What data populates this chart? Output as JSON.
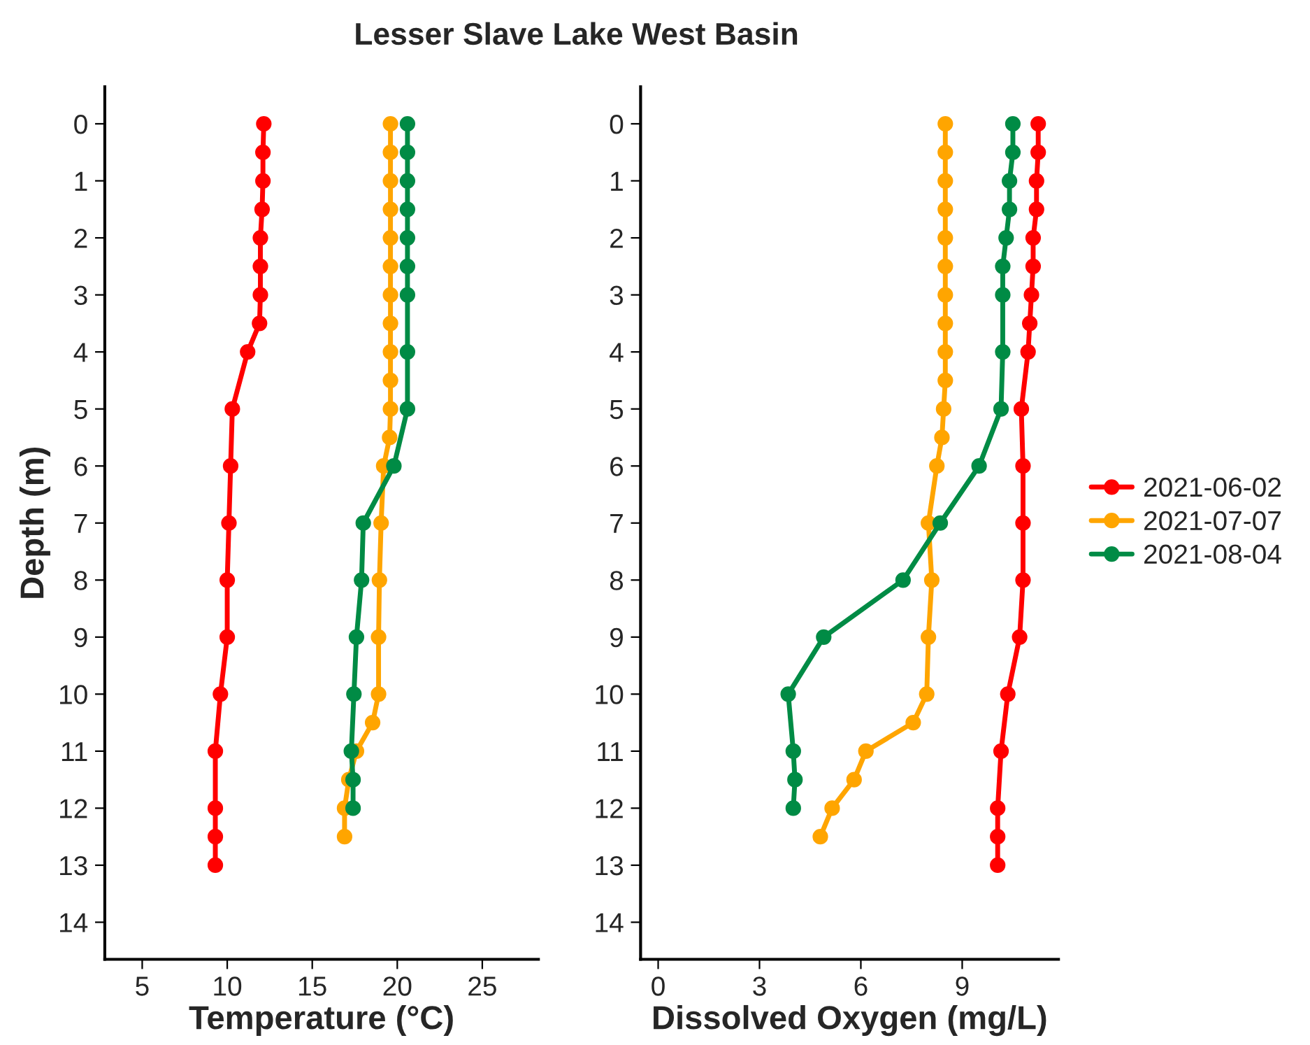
{
  "chart_data": [
    {
      "type": "line",
      "title": "Lesser Slave Lake West Basin",
      "orientation": "horizontal",
      "xlabel": "Temperature (°C)",
      "ylabel": "Depth (m)",
      "xlim": [
        2.8,
        28.3
      ],
      "xticks": [
        5,
        10,
        15,
        20,
        25
      ],
      "ylim": [
        14.65,
        -0.65
      ],
      "yticks": [
        0,
        1,
        2,
        3,
        4,
        5,
        6,
        7,
        8,
        9,
        10,
        11,
        12,
        13,
        14
      ],
      "marker": "circle",
      "line_style": "solid",
      "grid": false,
      "legend": false,
      "series": [
        {
          "color": "#ff0000",
          "x": [
            0,
            0.5,
            1,
            1.5,
            2,
            2.5,
            3,
            3.5,
            4,
            5,
            6,
            7,
            8,
            9,
            10,
            11,
            12,
            12.5,
            13
          ],
          "values": [
            12.15,
            12.1,
            12.1,
            12.05,
            11.95,
            11.95,
            11.95,
            11.9,
            11.2,
            10.3,
            10.2,
            10.1,
            10.0,
            10.0,
            9.6,
            9.3,
            9.3,
            9.3,
            9.3
          ]
        },
        {
          "color": "#ffa500",
          "x": [
            0,
            0.5,
            1,
            1.5,
            2,
            2.5,
            3,
            3.5,
            4,
            4.5,
            5,
            5.5,
            6,
            7,
            8,
            9,
            10,
            10.5,
            11,
            11.5,
            12,
            12.5
          ],
          "values": [
            19.6,
            19.6,
            19.6,
            19.6,
            19.6,
            19.6,
            19.6,
            19.6,
            19.6,
            19.6,
            19.6,
            19.55,
            19.2,
            19.05,
            18.95,
            18.9,
            18.9,
            18.55,
            17.6,
            17.15,
            16.9,
            16.9
          ]
        },
        {
          "color": "#008b45",
          "x": [
            0,
            0.5,
            1,
            1.5,
            2,
            2.5,
            3,
            4,
            5,
            6,
            7,
            8,
            9,
            10,
            11,
            11.5,
            12
          ],
          "values": [
            20.6,
            20.6,
            20.6,
            20.6,
            20.6,
            20.6,
            20.6,
            20.6,
            20.6,
            19.8,
            18.0,
            17.9,
            17.6,
            17.45,
            17.3,
            17.4,
            17.4
          ]
        }
      ]
    },
    {
      "type": "line",
      "orientation": "horizontal",
      "xlabel": "Dissolved Oxygen (mg/L)",
      "xlim": [
        -0.52,
        11.85
      ],
      "xticks": [
        0,
        3,
        6,
        9
      ],
      "ylim": [
        14.65,
        -0.65
      ],
      "yticks": [
        0,
        1,
        2,
        3,
        4,
        5,
        6,
        7,
        8,
        9,
        10,
        11,
        12,
        13,
        14
      ],
      "marker": "circle",
      "line_style": "solid",
      "grid": false,
      "legend": "right",
      "series": [
        {
          "name": "2021-06-02",
          "color": "#ff0000",
          "x": [
            0,
            0.5,
            1,
            1.5,
            2,
            2.5,
            3,
            3.5,
            4,
            5,
            6,
            7,
            8,
            9,
            10,
            11,
            12,
            12.5,
            13
          ],
          "values": [
            11.25,
            11.25,
            11.2,
            11.2,
            11.1,
            11.1,
            11.05,
            11.0,
            10.95,
            10.75,
            10.8,
            10.8,
            10.8,
            10.7,
            10.35,
            10.15,
            10.05,
            10.05,
            10.05
          ]
        },
        {
          "name": "2021-07-07",
          "color": "#ffa500",
          "x": [
            0,
            0.5,
            1,
            1.5,
            2,
            2.5,
            3,
            3.5,
            4,
            4.5,
            5,
            5.5,
            6,
            7,
            8,
            9,
            10,
            10.5,
            11,
            11.5,
            12,
            12.5
          ],
          "values": [
            8.5,
            8.5,
            8.5,
            8.5,
            8.5,
            8.5,
            8.5,
            8.5,
            8.5,
            8.5,
            8.45,
            8.4,
            8.25,
            8.0,
            8.1,
            8.0,
            7.95,
            7.55,
            6.15,
            5.8,
            5.15,
            4.8
          ]
        },
        {
          "name": "2021-08-04",
          "color": "#008b45",
          "x": [
            0,
            0.5,
            1,
            1.5,
            2,
            2.5,
            3,
            4,
            5,
            6,
            7,
            8,
            9,
            10,
            11,
            11.5,
            12
          ],
          "values": [
            10.5,
            10.5,
            10.4,
            10.4,
            10.3,
            10.2,
            10.2,
            10.2,
            10.15,
            9.5,
            8.35,
            7.25,
            4.9,
            3.85,
            4.0,
            4.05,
            4.0
          ]
        }
      ]
    }
  ]
}
